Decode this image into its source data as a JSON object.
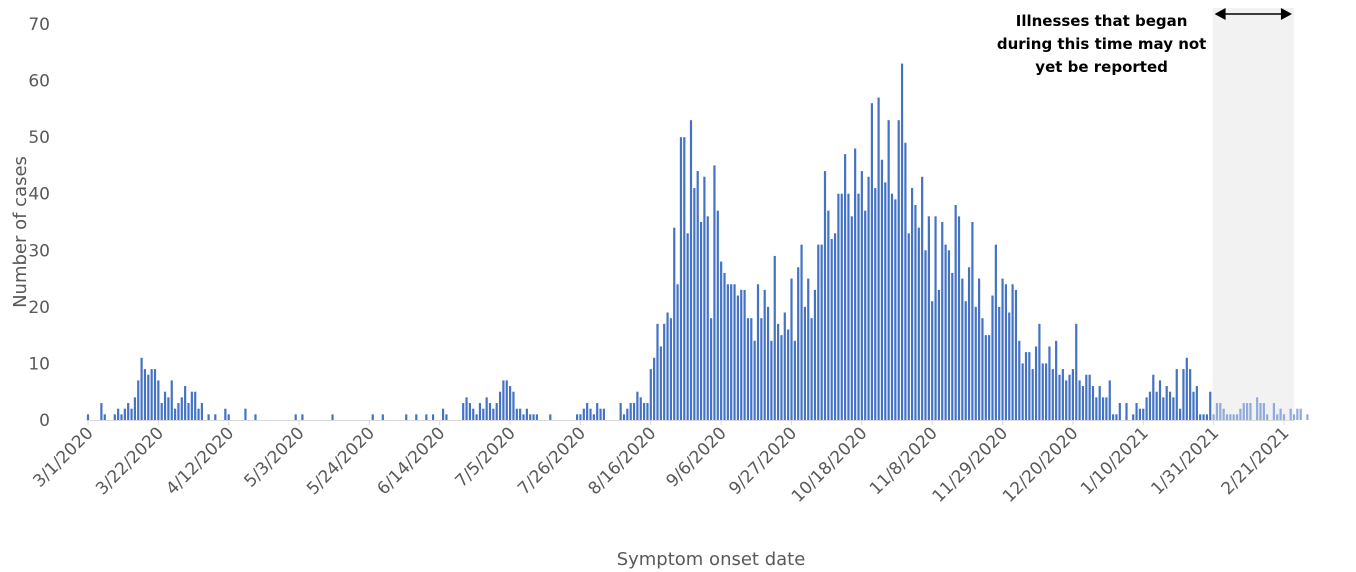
{
  "chart_data": {
    "type": "bar",
    "xlabel": "Symptom onset date",
    "ylabel": "Number of cases",
    "ylim": [
      0,
      70
    ],
    "y_ticks": [
      0,
      10,
      20,
      30,
      40,
      50,
      60,
      70
    ],
    "x_start": "3/1/2020",
    "x_end": "2/21/2021",
    "x_tick_labels": [
      "3/1/2020",
      "3/22/2020",
      "4/12/2020",
      "5/3/2020",
      "5/24/2020",
      "6/14/2020",
      "7/5/2020",
      "7/26/2020",
      "8/16/2020",
      "9/6/2020",
      "9/27/2020",
      "10/18/2020",
      "11/8/2020",
      "11/29/2020",
      "12/20/2020",
      "1/10/2021",
      "1/31/2021",
      "2/21/2021"
    ],
    "grid": false,
    "bar_color": "#4472C4",
    "shaded_bar_color": "#8FAADC",
    "shaded_region_color": "#F2F2F2",
    "shaded_region": [
      "1/31/2021",
      "2/21/2021"
    ],
    "annotation": "Illnesses that began during this time may not yet be reported",
    "annotation_lines": [
      "Illnesses that began",
      "during this time may not",
      "yet be reported"
    ],
    "values": [
      1,
      0,
      0,
      0,
      3,
      1,
      0,
      0,
      1,
      2,
      1,
      2,
      3,
      2,
      4,
      7,
      11,
      9,
      8,
      9,
      9,
      7,
      3,
      5,
      4,
      7,
      2,
      3,
      4,
      6,
      3,
      5,
      5,
      2,
      3,
      0,
      1,
      0,
      1,
      0,
      0,
      2,
      1,
      0,
      0,
      0,
      0,
      2,
      0,
      0,
      1,
      0,
      0,
      0,
      0,
      0,
      0,
      0,
      0,
      0,
      0,
      0,
      1,
      0,
      1,
      0,
      0,
      0,
      0,
      0,
      0,
      0,
      0,
      1,
      0,
      0,
      0,
      0,
      0,
      0,
      0,
      0,
      0,
      0,
      0,
      1,
      0,
      0,
      1,
      0,
      0,
      0,
      0,
      0,
      0,
      1,
      0,
      0,
      1,
      0,
      0,
      1,
      0,
      1,
      0,
      0,
      2,
      1,
      0,
      0,
      0,
      0,
      3,
      4,
      3,
      2,
      1,
      3,
      2,
      4,
      3,
      2,
      3,
      5,
      7,
      7,
      6,
      5,
      2,
      2,
      1,
      2,
      1,
      1,
      1,
      0,
      0,
      0,
      1,
      0,
      0,
      0,
      0,
      0,
      0,
      0,
      1,
      1,
      2,
      3,
      2,
      1,
      3,
      2,
      2,
      0,
      0,
      0,
      0,
      3,
      1,
      2,
      3,
      3,
      5,
      4,
      3,
      3,
      9,
      11,
      17,
      13,
      17,
      19,
      18,
      34,
      24,
      50,
      50,
      33,
      53,
      41,
      44,
      35,
      43,
      36,
      18,
      45,
      37,
      28,
      26,
      24,
      24,
      24,
      22,
      23,
      23,
      18,
      18,
      14,
      24,
      18,
      23,
      20,
      14,
      29,
      17,
      15,
      19,
      16,
      25,
      14,
      27,
      31,
      20,
      25,
      18,
      23,
      31,
      31,
      44,
      37,
      32,
      33,
      40,
      40,
      47,
      40,
      36,
      48,
      40,
      44,
      37,
      43,
      56,
      41,
      57,
      46,
      42,
      53,
      40,
      39,
      53,
      63,
      49,
      33,
      41,
      38,
      34,
      43,
      30,
      36,
      21,
      36,
      23,
      35,
      31,
      30,
      26,
      38,
      36,
      25,
      21,
      27,
      35,
      20,
      25,
      18,
      15,
      15,
      22,
      31,
      20,
      25,
      24,
      19,
      24,
      23,
      14,
      10,
      12,
      12,
      9,
      13,
      17,
      10,
      10,
      13,
      9,
      14,
      8,
      9,
      7,
      8,
      9,
      17,
      7,
      6,
      8,
      8,
      6,
      4,
      6,
      4,
      4,
      7,
      1,
      1,
      3,
      0,
      3,
      0,
      1,
      3,
      2,
      2,
      4,
      5,
      8,
      5,
      7,
      4,
      6,
      5,
      4,
      9,
      2,
      9,
      11,
      9,
      5,
      6,
      1,
      1,
      1,
      5,
      1,
      3,
      3,
      2,
      1,
      1,
      1,
      1,
      2,
      3,
      3,
      3,
      0,
      4,
      3,
      3,
      1,
      0,
      3,
      1,
      2,
      1,
      0,
      2,
      1,
      2,
      2,
      0,
      1
    ]
  }
}
